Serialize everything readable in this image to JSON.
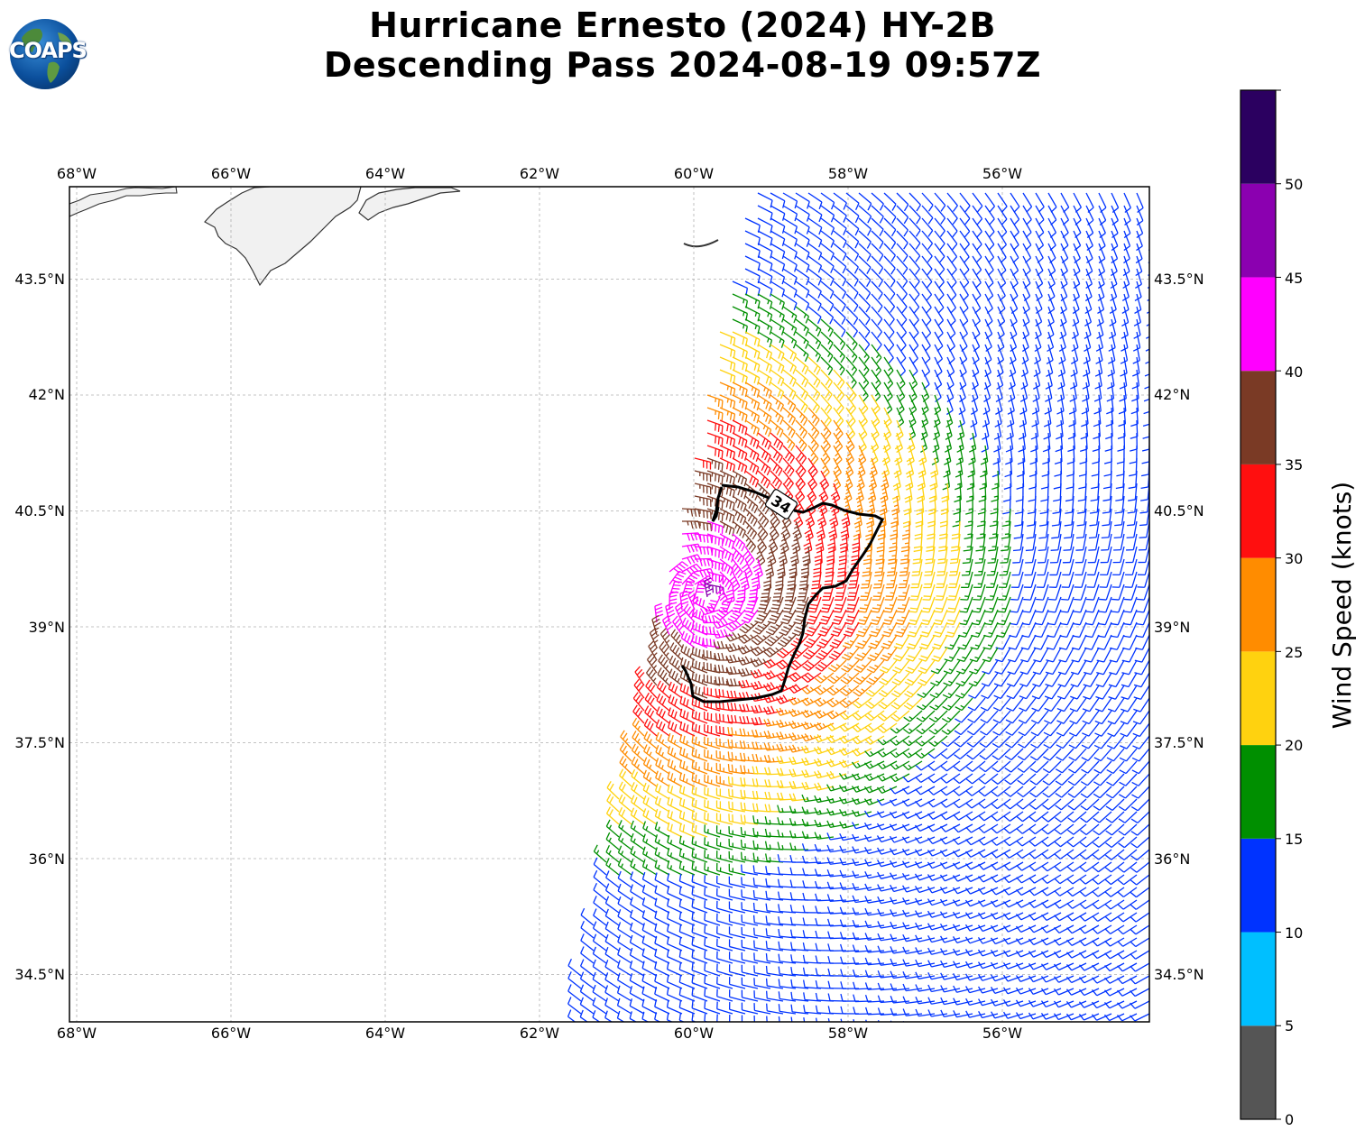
{
  "title": {
    "line1": "Hurricane Ernesto (2024) HY-2B",
    "line2": "Descending Pass 2024-08-19 09:57Z"
  },
  "logo": {
    "text": "COAPS"
  },
  "map": {
    "lon_range": [
      -68.1,
      -54.1
    ],
    "lat_range": [
      33.9,
      44.7
    ],
    "lon_ticks": [
      "68°W",
      "66°W",
      "64°W",
      "62°W",
      "60°W",
      "58°W",
      "56°W"
    ],
    "lat_ticks": [
      "43.5°N",
      "42°N",
      "40.5°N",
      "39°N",
      "37.5°N",
      "36°N",
      "34.5°N"
    ],
    "gridlines": true,
    "contour_label": "34",
    "storm_center": {
      "lon": -59.8,
      "lat": 39.4
    }
  },
  "colorbar": {
    "label": "Wind Speed (knots)",
    "ticks": [
      "0",
      "5",
      "10",
      "15",
      "20",
      "25",
      "30",
      "35",
      "40",
      "45",
      "50"
    ],
    "bins": [
      {
        "from": 0,
        "to": 5,
        "color": "#555555"
      },
      {
        "from": 5,
        "to": 10,
        "color": "#00bfff"
      },
      {
        "from": 10,
        "to": 15,
        "color": "#0033ff"
      },
      {
        "from": 15,
        "to": 20,
        "color": "#008f00"
      },
      {
        "from": 20,
        "to": 25,
        "color": "#ffd20f"
      },
      {
        "from": 25,
        "to": 30,
        "color": "#ff8c00"
      },
      {
        "from": 30,
        "to": 35,
        "color": "#ff0f0f"
      },
      {
        "from": 35,
        "to": 40,
        "color": "#7a3a25"
      },
      {
        "from": 40,
        "to": 45,
        "color": "#ff00ff"
      },
      {
        "from": 45,
        "to": 50,
        "color": "#8b00b0"
      },
      {
        "from": 50,
        "to": 55,
        "color": "#2b0060"
      }
    ]
  }
}
